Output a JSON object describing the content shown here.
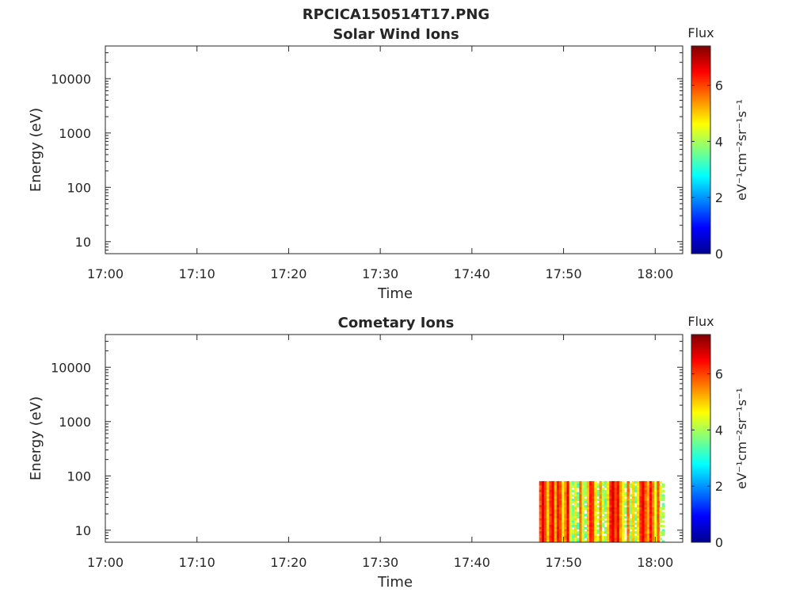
{
  "figure_title": "RPCICA150514T17.PNG",
  "chart_data": [
    {
      "type": "heatmap",
      "title": "Solar Wind Ions",
      "xlabel": "Time",
      "ylabel": "Energy (eV)",
      "x_ticks": [
        "17:00",
        "17:10",
        "17:20",
        "17:30",
        "17:40",
        "17:50",
        "18:00"
      ],
      "x_range": [
        "17:00",
        "18:03"
      ],
      "y_scale": "log",
      "y_ticks": [
        10,
        100,
        1000,
        10000
      ],
      "y_range": [
        6,
        40000
      ],
      "colorbar": {
        "title": "Flux",
        "label": "eV⁻¹cm⁻²sr⁻¹s⁻¹",
        "ticks": [
          0,
          2,
          4,
          6
        ],
        "range": [
          0,
          7.4
        ],
        "colormap": "jet"
      },
      "data": {}
    },
    {
      "type": "heatmap",
      "title": "Cometary Ions",
      "xlabel": "Time",
      "ylabel": "Energy (eV)",
      "x_ticks": [
        "17:00",
        "17:10",
        "17:20",
        "17:30",
        "17:40",
        "17:50",
        "18:00"
      ],
      "x_range": [
        "17:00",
        "18:03"
      ],
      "y_scale": "log",
      "y_ticks": [
        10,
        100,
        1000,
        10000
      ],
      "y_range": [
        6,
        40000
      ],
      "colorbar": {
        "title": "Flux",
        "label": "eV⁻¹cm⁻²sr⁻¹s⁻¹",
        "ticks": [
          0,
          2,
          4,
          6
        ],
        "range": [
          0,
          7.4
        ],
        "colormap": "jet"
      },
      "data": {
        "time_start": "17:47:20",
        "time_end": "18:01:00",
        "energy_min_eV": 6,
        "energy_max_eV": 80,
        "flux_range": [
          2.5,
          7.0
        ],
        "columns": [
          [
            5.6,
            6.2
          ],
          [
            6.5,
            6.8
          ],
          [
            5.8,
            6.0
          ],
          [
            4.8,
            5.2
          ],
          [
            5.9,
            6.3
          ],
          [
            6.4,
            6.6
          ],
          [
            5.0,
            5.4
          ],
          [
            6.2,
            6.5
          ],
          [
            5.7,
            6.1
          ],
          [
            4.5,
            4.9
          ],
          [
            5.3,
            5.8
          ],
          [
            6.3,
            6.7
          ],
          [
            4.2,
            4.6
          ],
          [
            3.3,
            4.4
          ],
          [
            4.6,
            5.0
          ],
          [
            3.0,
            3.8
          ],
          [
            5.5,
            5.9
          ],
          [
            4.0,
            4.6
          ],
          [
            3.2,
            4.2
          ],
          [
            4.9,
            5.3
          ],
          [
            6.1,
            6.4
          ],
          [
            5.9,
            6.2
          ],
          [
            4.4,
            4.9
          ],
          [
            3.5,
            4.5
          ],
          [
            5.2,
            5.6
          ],
          [
            3.8,
            4.5
          ],
          [
            3.1,
            3.9
          ],
          [
            4.7,
            5.1
          ],
          [
            6.0,
            6.5
          ],
          [
            6.6,
            6.9
          ],
          [
            5.8,
            6.1
          ],
          [
            6.3,
            6.6
          ],
          [
            5.1,
            5.5
          ],
          [
            4.3,
            4.8
          ],
          [
            3.6,
            4.3
          ],
          [
            5.4,
            5.8
          ],
          [
            3.4,
            4.1
          ],
          [
            4.8,
            5.2
          ],
          [
            3.2,
            4.0
          ],
          [
            4.6,
            5.1
          ],
          [
            5.9,
            6.3
          ],
          [
            6.4,
            6.7
          ],
          [
            5.6,
            6.0
          ],
          [
            4.9,
            5.4
          ],
          [
            6.1,
            6.5
          ],
          [
            5.3,
            5.7
          ],
          [
            4.1,
            4.7
          ],
          [
            5.7,
            6.0
          ],
          [
            3.9,
            4.6
          ],
          [
            3.3,
            4.2
          ]
        ]
      }
    }
  ]
}
